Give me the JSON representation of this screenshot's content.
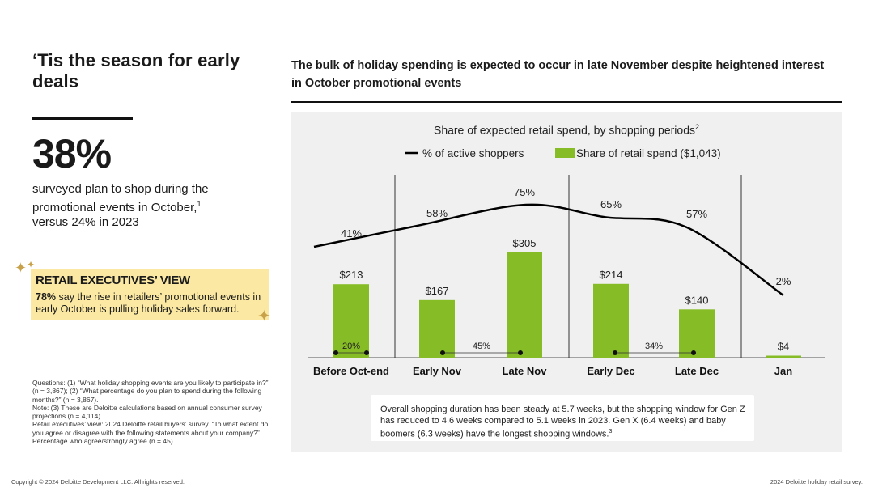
{
  "left": {
    "title": "‘Tis the season for early deals",
    "stat": "38%",
    "stat_line1": "surveyed plan to shop during the promotional events in October,",
    "stat_sup": "1",
    "stat_line2": "versus 24% in 2023",
    "exec_title": "RETAIL EXECUTIVES’ VIEW",
    "exec_bold": "78%",
    "exec_text": " say the rise in retailers’ promotional events in early October is pulling holiday sales forward.",
    "notes": [
      "Questions: (1) “What holiday shopping events are you likely to participate in?” (n = 3,867); (2) “What percentage do you plan to spend during the following months?” (n = 3,867).",
      "Note: (3) These are Deloitte calculations based on annual consumer survey projections (n = 4,114).",
      "Retail executives’ view: 2024 Deloitte retail buyers’ survey. “To what extent do you agree or disagree with the following statements about your company?” Percentage who agree/strongly agree (n = 45)."
    ]
  },
  "footer": {
    "copyright": "Copyright © 2024 Deloitte Development LLC. All rights reserved.",
    "source": "2024 Deloitte holiday retail survey."
  },
  "header": {
    "chart_heading": "The bulk of holiday spending is expected to occur in late November despite heightened interest in October promotional events"
  },
  "chart_data": {
    "type": "bar",
    "title": "Share of expected retail spend, by shopping periods",
    "title_sup": "2",
    "categories": [
      "Before Oct-end",
      "Early Nov",
      "Late Nov",
      "Early Dec",
      "Late Dec",
      "Jan"
    ],
    "series": [
      {
        "name": "Share of retail spend ($1,043)",
        "type": "bar",
        "color": "#86bc25",
        "values": [
          213,
          167,
          305,
          214,
          140,
          4
        ],
        "labels": [
          "$213",
          "$167",
          "$305",
          "$214",
          "$140",
          "$4"
        ]
      },
      {
        "name": "% of active shoppers",
        "type": "line",
        "color": "#000000",
        "values": [
          41,
          58,
          75,
          65,
          57,
          2
        ],
        "labels": [
          "41%",
          "58%",
          "75%",
          "65%",
          "57%",
          "2%"
        ]
      }
    ],
    "ranges": [
      {
        "from": "Before Oct-end",
        "to": "Before Oct-end",
        "label": "20%"
      },
      {
        "from": "Early Nov",
        "to": "Late Nov",
        "label": "45%"
      },
      {
        "from": "Early Dec",
        "to": "Late Dec",
        "label": "34%"
      }
    ],
    "dividers_after": [
      "Before Oct-end",
      "Late Nov",
      "Late Dec"
    ],
    "bar_max": 305,
    "line_max": 75
  },
  "callout": {
    "text": "Overall shopping duration has been steady at 5.7 weeks, but the shopping window for Gen Z has reduced to 4.6 weeks compared to 5.1 weeks in 2023. Gen X (6.4 weeks) and baby boomers (6.3 weeks) have the longest shopping windows.",
    "sup": "3"
  }
}
